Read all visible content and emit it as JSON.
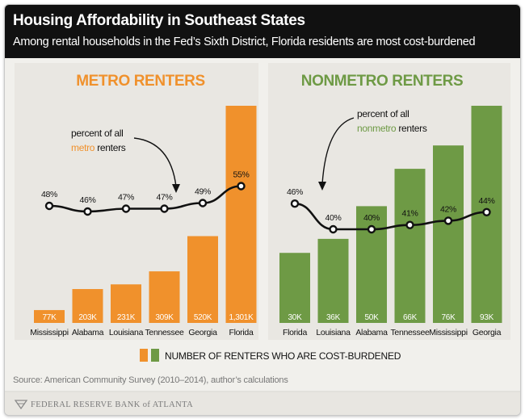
{
  "title": "Housing Affordability in Southeast States",
  "subtitle": "Among rental households in the Fed’s Sixth District, Florida residents are most cost-burdened",
  "legend_label": "NUMBER OF RENTERS WHO ARE COST-BURDENED",
  "source": "Source: American Community Survey (2010–2014), author’s calculations",
  "footer": "FEDERAL RESERVE BANK of ATLANTA",
  "colors": {
    "metro": "#f0912c",
    "nonmetro": "#6e9a45",
    "line": "#111111",
    "header": "#111111"
  },
  "chart_data": [
    {
      "type": "bar",
      "title": "METRO RENTERS",
      "categories": [
        "Mississippi",
        "Alabama",
        "Louisiana",
        "Tennessee",
        "Georgia",
        "Florida"
      ],
      "bar_labels": [
        "77K",
        "203K",
        "231K",
        "309K",
        "520K",
        "1,301K"
      ],
      "values": [
        77,
        203,
        231,
        309,
        520,
        1301
      ],
      "value_unit": "thousands of cost-burdened renters",
      "line_series": {
        "labels": [
          "48%",
          "46%",
          "47%",
          "47%",
          "49%",
          "55%"
        ],
        "values": [
          48,
          46,
          47,
          47,
          49,
          55
        ]
      },
      "annotation": {
        "prefix": "percent of all",
        "highlight": "metro",
        "suffix": " renters"
      },
      "color": "#f0912c"
    },
    {
      "type": "bar",
      "title": "NONMETRO RENTERS",
      "categories": [
        "Florida",
        "Louisiana",
        "Alabama",
        "Tennessee",
        "Mississippi",
        "Georgia"
      ],
      "bar_labels": [
        "30K",
        "36K",
        "50K",
        "66K",
        "76K",
        "93K"
      ],
      "values": [
        30,
        36,
        50,
        66,
        76,
        93
      ],
      "value_unit": "thousands of cost-burdened renters",
      "line_series": {
        "labels": [
          "46%",
          "40%",
          "40%",
          "41%",
          "42%",
          "44%"
        ],
        "values": [
          46,
          40,
          40,
          41,
          42,
          44
        ]
      },
      "annotation": {
        "prefix": "percent of all",
        "highlight": "nonmetro",
        "suffix": " renters"
      },
      "color": "#6e9a45"
    }
  ]
}
